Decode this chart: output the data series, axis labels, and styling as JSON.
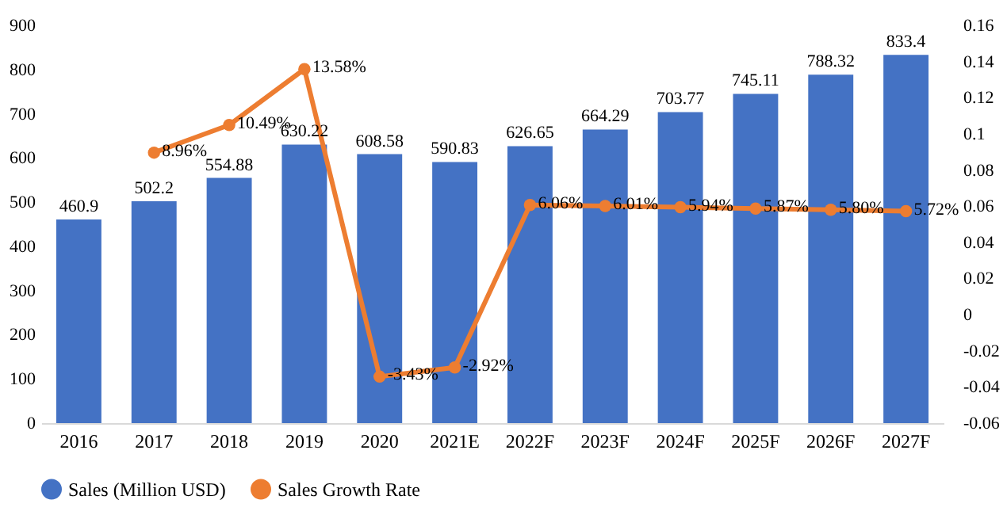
{
  "chart_data": {
    "type": "bar",
    "categories": [
      "2016",
      "2017",
      "2018",
      "2019",
      "2020",
      "2021E",
      "2022F",
      "2023F",
      "2024F",
      "2025F",
      "2026F",
      "2027F"
    ],
    "series": [
      {
        "name": "Sales (Million USD)",
        "color": "#4472c4",
        "data_labels": true,
        "values": [
          460.9,
          502.2,
          554.88,
          630.22,
          608.58,
          590.83,
          626.65,
          664.29,
          703.77,
          745.11,
          788.32,
          833.4
        ]
      },
      {
        "name": "Sales Growth Rate",
        "type": "line",
        "axis": "y2",
        "color": "#ed7d31",
        "marker": "circle",
        "values": [
          null,
          0.0896,
          0.1049,
          0.1358,
          -0.0343,
          -0.0292,
          0.0606,
          0.0601,
          0.0594,
          0.0587,
          0.058,
          0.0572
        ],
        "value_labels": [
          null,
          "8.96%",
          "10.49%",
          "13.58%",
          "-3.43%",
          "-2.92%",
          "6.06%",
          "6.01%",
          "5.94%",
          "5.87%",
          "5.80%",
          "5.72%"
        ]
      }
    ],
    "ylim": [
      0,
      900
    ],
    "yticks": [
      0,
      100,
      200,
      300,
      400,
      500,
      600,
      700,
      800,
      900
    ],
    "y2lim": [
      -0.06,
      0.16
    ],
    "y2ticks": [
      -0.06,
      -0.04,
      -0.02,
      0,
      0.02,
      0.04,
      0.06,
      0.08,
      0.1,
      0.12,
      0.14,
      0.16
    ],
    "grid": false,
    "legend": "bottom"
  }
}
